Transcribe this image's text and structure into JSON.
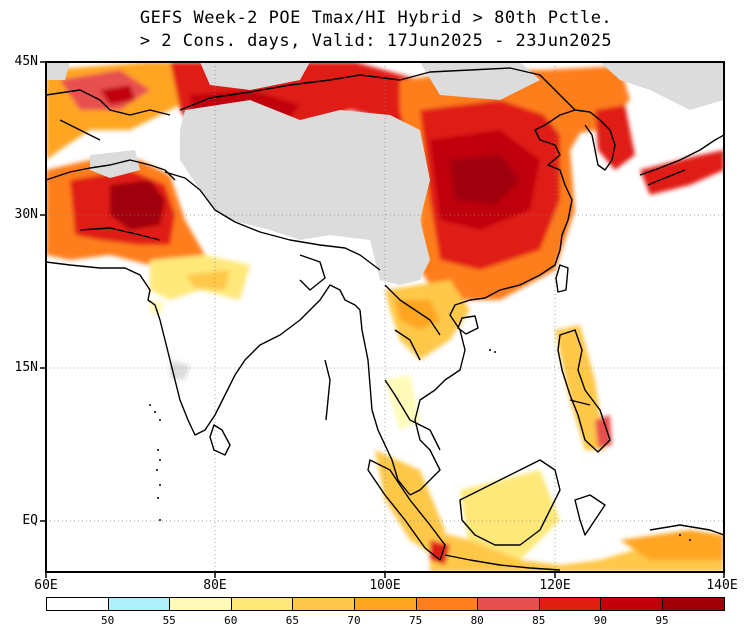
{
  "title": {
    "line1": "GEFS Week-2 POE Tmax/HI Hybrid > 80th Pctle.",
    "line2": "> 2 Cons. days, Valid: 17Jun2025 - 23Jun2025"
  },
  "axes": {
    "y_labels": [
      "45N",
      "30N",
      "15N",
      "EQ"
    ],
    "x_labels": [
      "60E",
      "80E",
      "100E",
      "120E",
      "140E"
    ]
  },
  "colorbar": {
    "colors": [
      "#ffffff",
      "#aef0f8",
      "#fffbb8",
      "#ffe87a",
      "#ffc84a",
      "#ffa520",
      "#ff7e1e",
      "#e85050",
      "#e01e12",
      "#c0000a",
      "#a00008"
    ],
    "labels": [
      "50",
      "55",
      "60",
      "65",
      "70",
      "75",
      "80",
      "85",
      "90",
      "95"
    ]
  },
  "colors": {
    "no_data": "#dcdcdc",
    "coast": "#000000"
  }
}
